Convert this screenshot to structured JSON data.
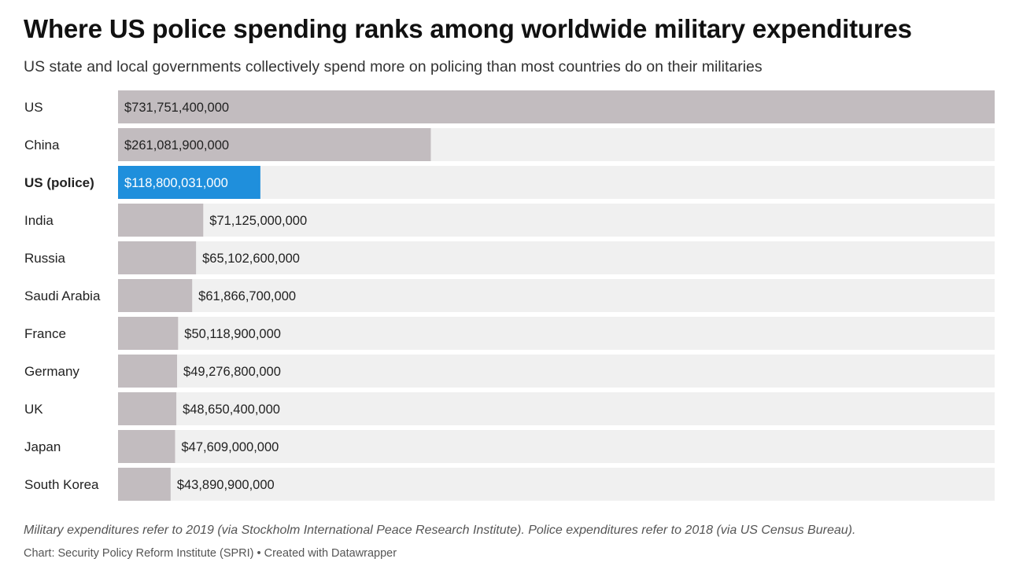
{
  "header": {
    "title": "Where US police spending ranks among worldwide military expenditures",
    "subtitle": "US state and local governments collectively spend more on policing than most countries do on their militaries"
  },
  "footer": {
    "note": "Military expenditures refer to 2019 (via Stockholm International Peace Research Institute). Police expenditures refer to 2018 (via US Census Bureau).",
    "credit": "Chart: Security Policy Reform Institute (SPRI) • Created with Datawrapper"
  },
  "chart_data": {
    "type": "bar",
    "orientation": "horizontal",
    "categories": [
      "US",
      "China",
      "US (police)",
      "India",
      "Russia",
      "Saudi Arabia",
      "France",
      "Germany",
      "UK",
      "Japan",
      "South Korea"
    ],
    "values": [
      731751400000,
      261081900000,
      118800031000,
      71125000000,
      65102600000,
      61866700000,
      50118900000,
      49276800000,
      48650400000,
      47609000000,
      43890900000
    ],
    "value_labels": [
      "$731,751,400,000",
      "$261,081,900,000",
      "$118,800,031,000",
      "$71,125,000,000",
      "$65,102,600,000",
      "$61,866,700,000",
      "$50,118,900,000",
      "$49,276,800,000",
      "$48,650,400,000",
      "$47,609,000,000",
      "$43,890,900,000"
    ],
    "highlight": "US (police)",
    "xlim": [
      0,
      731751400000
    ],
    "grid": false,
    "colors": {
      "bar": "#c2bcbf",
      "highlight": "#1f8fdc",
      "track": "#f0f0f0",
      "label": "#222222",
      "highlight_label": "#ffffff"
    }
  }
}
